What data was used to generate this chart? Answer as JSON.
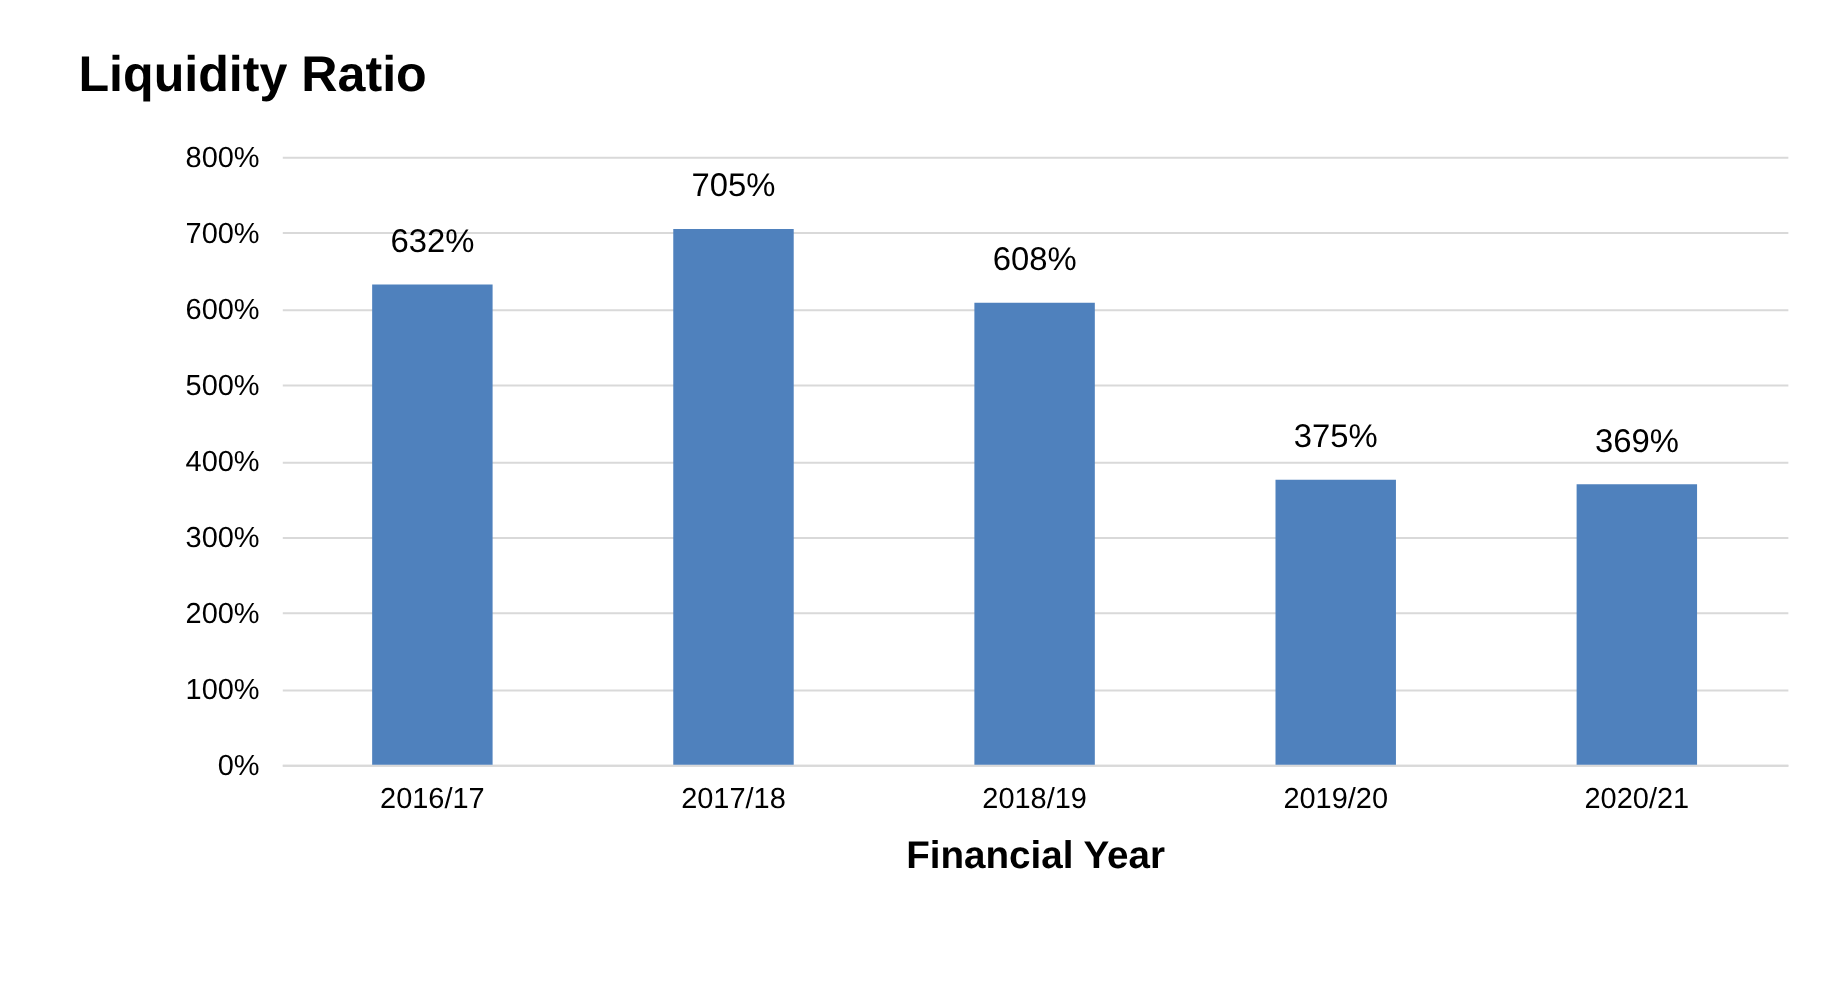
{
  "chart_data": {
    "type": "bar",
    "title": "Liquidity Ratio",
    "xlabel": "Financial Year",
    "categories": [
      "2016/17",
      "2017/18",
      "2018/19",
      "2019/20",
      "2020/21"
    ],
    "values": [
      632,
      705,
      608,
      375,
      369
    ],
    "value_labels": [
      "632%",
      "705%",
      "608%",
      "375%",
      "369%"
    ],
    "color": "#4f81bd",
    "ylim": [
      0,
      800
    ],
    "yticks": [
      {
        "value": 0,
        "label": "0%"
      },
      {
        "value": 100,
        "label": "100%"
      },
      {
        "value": 200,
        "label": "200%"
      },
      {
        "value": 300,
        "label": "300%"
      },
      {
        "value": 400,
        "label": "400%"
      },
      {
        "value": 500,
        "label": "500%"
      },
      {
        "value": 600,
        "label": "600%"
      },
      {
        "value": 700,
        "label": "700%"
      },
      {
        "value": 800,
        "label": "800%"
      }
    ],
    "grid": "y"
  }
}
